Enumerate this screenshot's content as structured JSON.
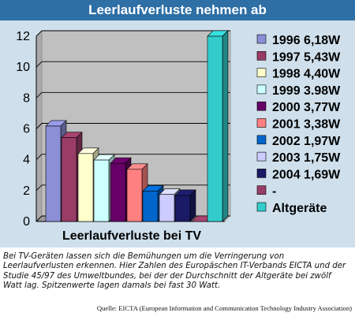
{
  "header": {
    "title": "Leerlaufverluste nehmen ab"
  },
  "caption": "Bei TV-Geräten lassen sich die Bemühungen um die Verringerung von Leerlaufverlusten erkennen. Hier Zahlen des Europäschen IT-Verbands EICTA und der Studie 45/97 des Umweltbundes, bei der der Durchschnitt der Altgeräte bei zwölf Watt lag. Spitzenwerte lagen damals bei fast 30 Watt.",
  "source": "Quelle: EICTA (European Information and Communication Technology Industry Association)",
  "chart_data": {
    "type": "bar",
    "title": "",
    "xlabel": "Leerlaufverluste bei TV",
    "ylabel": "",
    "ylim": [
      0,
      12
    ],
    "yticks": [
      "0",
      "2",
      "4",
      "6",
      "8",
      "10",
      "12"
    ],
    "grid": true,
    "legend_position": "right",
    "series": [
      {
        "name": "1996 6,18W",
        "value": 6.18,
        "color": "#8a8fd6"
      },
      {
        "name": "1997 5,43W",
        "value": 5.43,
        "color": "#993d66"
      },
      {
        "name": "1998 4,40W",
        "value": 4.4,
        "color": "#ffffcc"
      },
      {
        "name": "1999 3.98W",
        "value": 3.98,
        "color": "#ccffff"
      },
      {
        "name": "2000 3,77W",
        "value": 3.77,
        "color": "#660066"
      },
      {
        "name": "2001 3,38W",
        "value": 3.38,
        "color": "#ff8080"
      },
      {
        "name": "2002 1,97W",
        "value": 1.97,
        "color": "#0066cc"
      },
      {
        "name": "2003 1,75W",
        "value": 1.75,
        "color": "#ccccff"
      },
      {
        "name": "2004 1,69W",
        "value": 1.69,
        "color": "#1a1a66"
      },
      {
        "name": "-",
        "value": 0,
        "color": "#993d66"
      },
      {
        "name": "Altgeräte",
        "value": 12,
        "color": "#33cccc"
      }
    ]
  }
}
